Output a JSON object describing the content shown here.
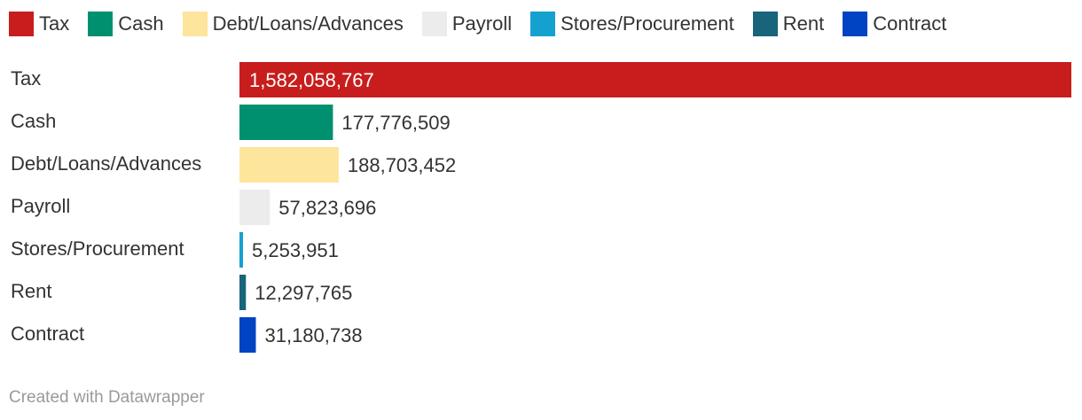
{
  "chart_data": {
    "type": "bar",
    "orientation": "horizontal",
    "categories": [
      "Tax",
      "Cash",
      "Debt/Loans/Advances",
      "Payroll",
      "Stores/Procurement",
      "Rent",
      "Contract"
    ],
    "values": [
      1582058767,
      177776509,
      188703452,
      57823696,
      5253951,
      12297765,
      31180738
    ],
    "value_labels": [
      "1,582,058,767",
      "177,776,509",
      "188,703,452",
      "57,823,696",
      "5,253,951",
      "12,297,765",
      "31,180,738"
    ],
    "colors": [
      "#c71e1d",
      "#009070",
      "#fee59c",
      "#ececec",
      "#15a1cf",
      "#18647b",
      "#0043c3"
    ],
    "legend": {
      "placement": "top",
      "entries": [
        "Tax",
        "Cash",
        "Debt/Loans/Advances",
        "Payroll",
        "Stores/Procurement",
        "Rent",
        "Contract"
      ]
    },
    "xlim": [
      0,
      1582058767
    ],
    "grid": false,
    "title": "",
    "xlabel": "",
    "ylabel": ""
  },
  "footer": {
    "credit": "Created with Datawrapper"
  }
}
